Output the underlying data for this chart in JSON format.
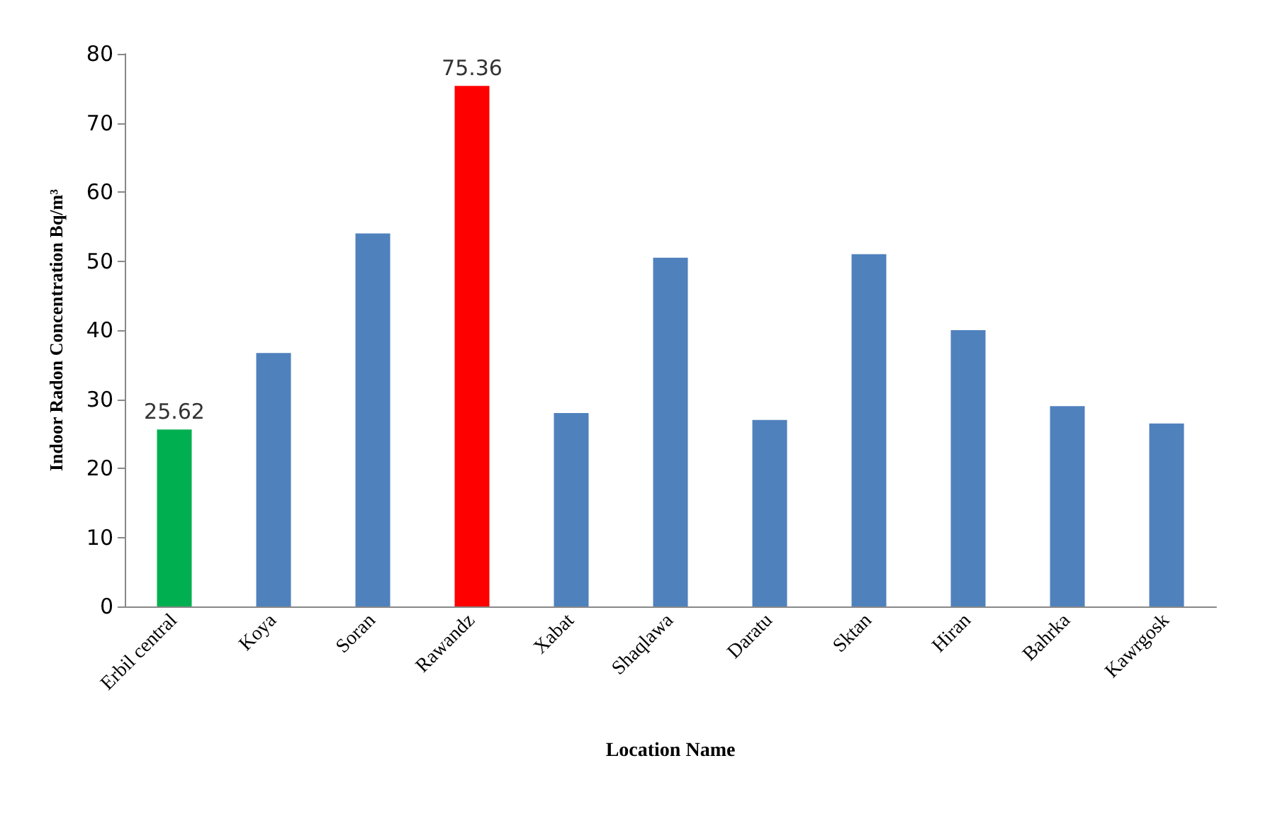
{
  "chart_data": {
    "type": "bar",
    "xlabel": "Location Name",
    "ylabel": "Indoor Radon Concentration Bq/m³",
    "categories": [
      "Erbil central",
      "Koya",
      "Soran",
      "Rawandz",
      "Xabat",
      "Shaqlawa",
      "Daratu",
      "Sktan",
      "Hiran",
      "Bahrka",
      "Kawrgosk"
    ],
    "values": [
      25.62,
      36.7,
      54,
      75.36,
      28,
      50.5,
      27,
      51,
      40,
      29,
      26.5
    ],
    "colors": [
      "#00b050",
      "#4f81bd",
      "#4f81bd",
      "#ff0000",
      "#4f81bd",
      "#4f81bd",
      "#4f81bd",
      "#4f81bd",
      "#4f81bd",
      "#4f81bd",
      "#4f81bd"
    ],
    "value_labels": [
      "25.62",
      null,
      null,
      "75.36",
      null,
      null,
      null,
      null,
      null,
      null,
      null
    ],
    "ylim": [
      0,
      80
    ],
    "yticks": [
      0,
      10,
      20,
      30,
      40,
      50,
      60,
      70,
      80
    ],
    "grid": false
  }
}
